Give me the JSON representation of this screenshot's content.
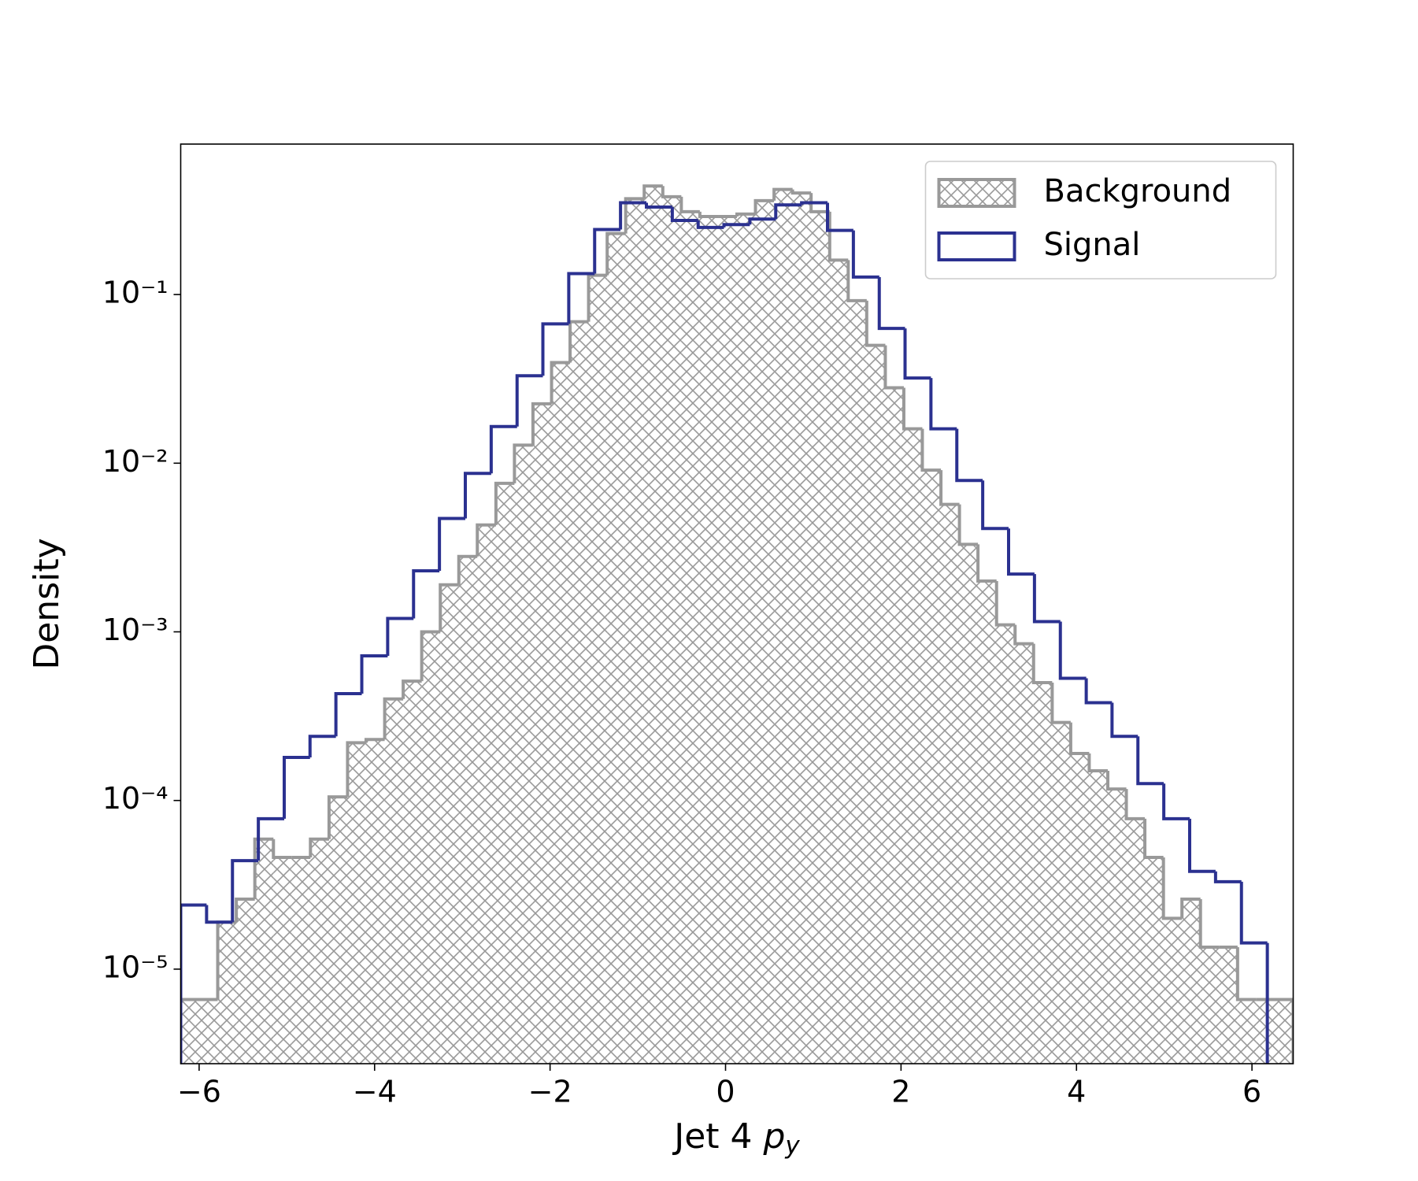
{
  "chart_data": {
    "type": "histogram",
    "xlabel": "Jet 4 py",
    "ylabel": "Density",
    "log_y": true,
    "legend": "upper right",
    "xlim": [
      -6.21,
      6.47
    ],
    "ylim": [
      2.75e-06,
      0.78
    ],
    "xticks": [
      {
        "value": -6,
        "label": "−6"
      },
      {
        "value": -4,
        "label": "−4"
      },
      {
        "value": -2,
        "label": "−2"
      },
      0,
      2,
      4,
      6
    ],
    "yticks": [
      {
        "value": 1e-05,
        "label": "10⁻⁵"
      },
      {
        "value": 0.0001,
        "label": "10⁻⁴"
      },
      {
        "value": 0.001,
        "label": "10⁻³"
      },
      {
        "value": 0.01,
        "label": "10⁻²"
      },
      {
        "value": 0.1,
        "label": "10⁻¹"
      }
    ],
    "series": [
      {
        "name": "Background",
        "color": "#999999",
        "hatch": true,
        "bins": [
          -6.21,
          -5.999,
          -5.788,
          -5.576,
          -5.365,
          -5.153,
          -4.942,
          -4.731,
          -4.519,
          -4.308,
          -4.097,
          -3.885,
          -3.674,
          -3.463,
          -3.251,
          -3.04,
          -2.829,
          -2.617,
          -2.406,
          -2.195,
          -1.983,
          -1.772,
          -1.561,
          -1.349,
          -1.138,
          -0.927,
          -0.715,
          -0.504,
          -0.293,
          -0.081,
          0.13,
          0.341,
          0.553,
          0.764,
          0.975,
          1.187,
          1.398,
          1.609,
          1.821,
          2.032,
          2.243,
          2.455,
          2.666,
          2.877,
          3.089,
          3.3,
          3.511,
          3.723,
          3.934,
          4.145,
          4.357,
          4.568,
          4.779,
          4.991,
          5.202,
          5.413,
          5.625,
          5.836,
          6.047,
          6.259,
          6.47
        ],
        "values": [
          6.6e-06,
          6.6e-06,
          1.9e-05,
          2.6e-05,
          5.9e-05,
          4.6e-05,
          4.6e-05,
          5.9e-05,
          0.000105,
          0.00022,
          0.00023,
          0.0004,
          0.00051,
          0.001,
          0.0019,
          0.0028,
          0.0043,
          0.0076,
          0.0128,
          0.0225,
          0.0395,
          0.069,
          0.13,
          0.23,
          0.37,
          0.44,
          0.38,
          0.31,
          0.29,
          0.29,
          0.3,
          0.36,
          0.42,
          0.4,
          0.31,
          0.16,
          0.092,
          0.05,
          0.028,
          0.016,
          0.0091,
          0.0057,
          0.0033,
          0.002,
          0.0011,
          0.00085,
          0.0005,
          0.00029,
          0.00019,
          0.00015,
          0.000117,
          7.8e-05,
          4.6e-05,
          2e-05,
          2.6e-05,
          1.35e-05,
          1.35e-05,
          6.6e-06,
          6.6e-06,
          6.6e-06
        ]
      },
      {
        "name": "Signal",
        "color": "#2b3190",
        "hatch": false,
        "bins": [
          -6.21,
          -5.915,
          -5.62,
          -5.325,
          -5.03,
          -4.736,
          -4.441,
          -4.146,
          -3.851,
          -3.556,
          -3.261,
          -2.966,
          -2.671,
          -2.376,
          -2.082,
          -1.787,
          -1.492,
          -1.197,
          -0.902,
          -0.607,
          -0.312,
          -0.018,
          0.277,
          0.572,
          0.867,
          1.162,
          1.457,
          1.752,
          2.046,
          2.341,
          2.636,
          2.931,
          3.226,
          3.521,
          3.816,
          4.111,
          4.405,
          4.7,
          4.995,
          5.29,
          5.585,
          5.88,
          6.175,
          6.47
        ],
        "values": [
          2.4e-05,
          1.9e-05,
          4.4e-05,
          7.8e-05,
          0.00018,
          0.00024,
          0.00043,
          0.00072,
          0.0012,
          0.0023,
          0.0047,
          0.0087,
          0.0165,
          0.033,
          0.067,
          0.133,
          0.243,
          0.35,
          0.33,
          0.275,
          0.25,
          0.26,
          0.28,
          0.34,
          0.35,
          0.24,
          0.127,
          0.063,
          0.032,
          0.016,
          0.0079,
          0.0041,
          0.0022,
          0.00115,
          0.00053,
          0.00038,
          0.00024,
          0.000126,
          7.8e-05,
          3.8e-05,
          3.3e-05,
          1.43e-05,
          0
        ]
      }
    ]
  }
}
